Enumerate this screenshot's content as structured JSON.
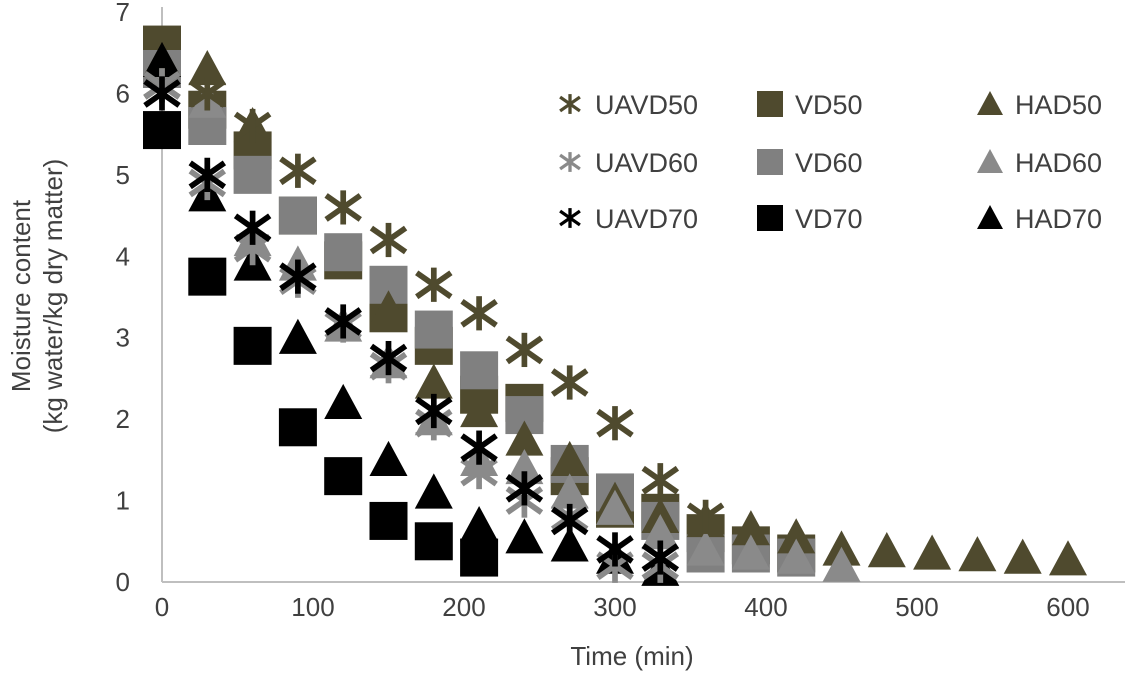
{
  "chart_data": {
    "type": "scatter",
    "title": "",
    "xlabel": "Time (min)",
    "ylabel_lines": [
      "Moisture content",
      "(kg water/kg dry matter)"
    ],
    "xlim": [
      0,
      600
    ],
    "ylim": [
      0,
      7
    ],
    "xticks": [
      0,
      100,
      200,
      300,
      400,
      500,
      600
    ],
    "yticks": [
      0,
      1,
      2,
      3,
      4,
      5,
      6,
      7
    ],
    "grid": false,
    "legend_placement": "top-right",
    "series": [
      {
        "name": "UAVD50",
        "marker": "x",
        "color": "#4f4a2e",
        "x": [
          0,
          30,
          60,
          90,
          120,
          150,
          180,
          210,
          240,
          270,
          300,
          330,
          360
        ],
        "y": [
          6.1,
          6.0,
          5.6,
          5.05,
          4.6,
          4.2,
          3.65,
          3.3,
          2.85,
          2.45,
          1.95,
          1.25,
          0.8
        ]
      },
      {
        "name": "UAVD60",
        "marker": "x",
        "color": "#8a8a8a",
        "x": [
          0,
          30,
          60,
          90,
          120,
          150,
          180,
          210,
          240,
          270,
          300,
          330
        ],
        "y": [
          6.1,
          4.9,
          4.1,
          3.7,
          3.15,
          2.65,
          1.95,
          1.35,
          1.0,
          0.8,
          0.2,
          0.2
        ]
      },
      {
        "name": "UAVD70",
        "marker": "x",
        "color": "#000000",
        "x": [
          0,
          30,
          60,
          90,
          120,
          150,
          180,
          210,
          240,
          270,
          300,
          330
        ],
        "y": [
          6.0,
          5.0,
          4.35,
          3.75,
          3.2,
          2.75,
          2.1,
          1.65,
          1.15,
          0.75,
          0.4,
          0.3
        ]
      },
      {
        "name": "VD50",
        "marker": "square",
        "color": "#4f4a2e",
        "x": [
          0,
          30,
          60,
          90,
          120,
          150,
          180,
          210,
          240,
          270,
          300,
          330,
          360,
          390,
          420
        ],
        "y": [
          6.6,
          5.8,
          5.3,
          4.5,
          3.95,
          3.3,
          2.9,
          2.3,
          2.2,
          1.3,
          0.9,
          0.85,
          0.6,
          0.45,
          0.35
        ]
      },
      {
        "name": "VD60",
        "marker": "square",
        "color": "#808080",
        "x": [
          0,
          30,
          60,
          90,
          120,
          150,
          180,
          210,
          240,
          270,
          300,
          330,
          360,
          390,
          420
        ],
        "y": [
          6.3,
          5.6,
          5.0,
          4.5,
          4.05,
          3.65,
          3.1,
          2.6,
          2.05,
          1.45,
          1.1,
          0.75,
          0.35,
          0.35,
          0.3
        ]
      },
      {
        "name": "VD70",
        "marker": "square",
        "color": "#000000",
        "x": [
          0,
          30,
          60,
          90,
          120,
          150,
          180,
          210
        ],
        "y": [
          5.55,
          3.75,
          2.9,
          1.9,
          1.3,
          0.75,
          0.5,
          0.3
        ]
      },
      {
        "name": "HAD50",
        "marker": "triangle",
        "color": "#4f4a2e",
        "x": [
          0,
          30,
          60,
          150,
          180,
          210,
          240,
          270,
          300,
          330,
          360,
          390,
          420,
          450,
          480,
          510,
          540,
          570,
          600
        ],
        "y": [
          6.4,
          6.3,
          5.6,
          3.35,
          2.45,
          2.1,
          1.75,
          1.5,
          1.0,
          0.8,
          0.75,
          0.65,
          0.55,
          0.4,
          0.38,
          0.35,
          0.33,
          0.3,
          0.28
        ]
      },
      {
        "name": "HAD60",
        "marker": "triangle",
        "color": "#8a8a8a",
        "x": [
          0,
          30,
          60,
          90,
          120,
          150,
          180,
          210,
          240,
          270,
          300,
          330,
          360,
          390,
          420,
          450
        ],
        "y": [
          6.3,
          5.9,
          4.2,
          3.9,
          3.15,
          2.7,
          2.0,
          1.5,
          1.4,
          1.1,
          0.9,
          0.6,
          0.4,
          0.35,
          0.3,
          0.2
        ]
      },
      {
        "name": "HAD70",
        "marker": "triangle",
        "color": "#000000",
        "x": [
          0,
          30,
          60,
          90,
          120,
          150,
          180,
          210,
          240,
          270,
          300,
          330
        ],
        "y": [
          6.4,
          4.75,
          3.9,
          3.0,
          2.2,
          1.5,
          1.1,
          0.7,
          0.55,
          0.45,
          0.3,
          0.15
        ]
      }
    ]
  }
}
